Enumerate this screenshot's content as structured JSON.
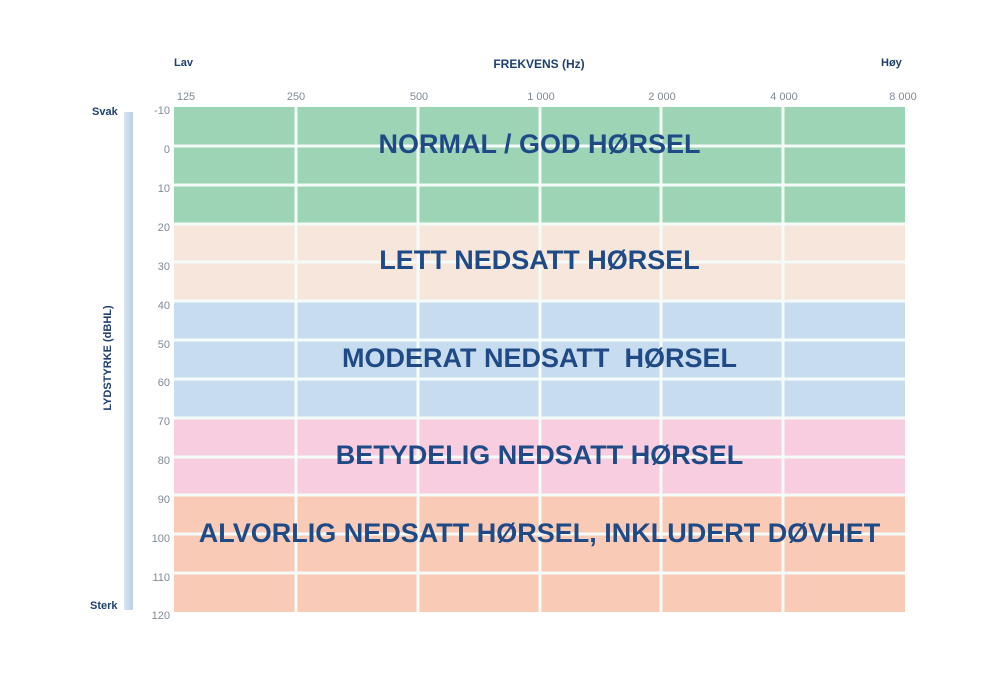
{
  "header": {
    "low_label": "Lav",
    "title": "FREKVENS (Hz)",
    "high_label": "Høy"
  },
  "y_axis": {
    "title": "LYDSTYRKE (dBHL)",
    "top_label": "Svak",
    "bottom_label": "Sterk"
  },
  "chart_data": {
    "type": "heatmap",
    "title": "FREKVENS (Hz)",
    "xlabel": "FREKVENS (Hz)",
    "ylabel": "LYDSTYRKE (dBHL)",
    "x_ticks": [
      "125",
      "250",
      "500",
      "1 000",
      "2 000",
      "4 000",
      "8 000"
    ],
    "y_ticks": [
      "-10",
      "0",
      "10",
      "20",
      "30",
      "40",
      "50",
      "60",
      "70",
      "80",
      "90",
      "100",
      "110",
      "120"
    ],
    "ylim": [
      -10,
      120
    ],
    "x_end_labels": {
      "left": "Lav",
      "right": "Høy"
    },
    "y_end_labels": {
      "top": "Svak",
      "bottom": "Sterk"
    },
    "grid": true,
    "bands": [
      {
        "label": "NORMAL / GOD HØRSEL",
        "from_db": -10,
        "to_db": 20,
        "color": "#9dd4b5"
      },
      {
        "label": "LETT NEDSATT HØRSEL",
        "from_db": 20,
        "to_db": 40,
        "color": "#f6e6dc"
      },
      {
        "label": "MODERAT NEDSATT  HØRSEL",
        "from_db": 40,
        "to_db": 70,
        "color": "#c8dcef"
      },
      {
        "label": "BETYDELIG NEDSATT HØRSEL",
        "from_db": 70,
        "to_db": 90,
        "color": "#f9cde0"
      },
      {
        "label": "ALVORLIG NEDSATT HØRSEL, INKLUDERT DØVHET",
        "from_db": 90,
        "to_db": 120,
        "color": "#f9cbb6"
      }
    ]
  }
}
